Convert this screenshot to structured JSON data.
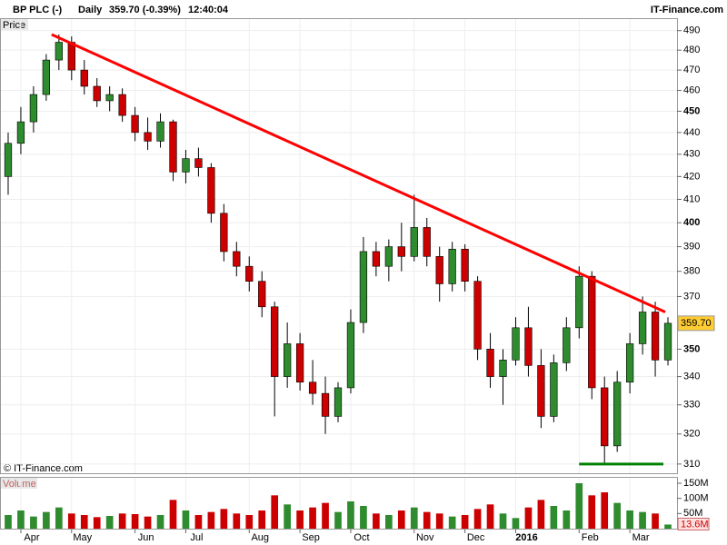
{
  "header": {
    "symbol": "BP PLC (-)",
    "period": "Daily",
    "quote": "359.70 (-0.39%)",
    "time": "12:40:04",
    "brand": "IT-Finance.com"
  },
  "chart_data": {
    "type": "candlestick",
    "price_label": "Price",
    "volume_label": "Volume",
    "copyright": "© IT-Finance.com",
    "categories": [
      null,
      "Apr",
      null,
      null,
      null,
      "May",
      null,
      null,
      null,
      null,
      "Jun",
      null,
      null,
      null,
      "Jul",
      null,
      null,
      null,
      null,
      "Aug",
      null,
      null,
      null,
      "Sep",
      null,
      null,
      null,
      "Oct",
      null,
      null,
      null,
      null,
      "Nov",
      null,
      null,
      null,
      "Dec",
      null,
      null,
      null,
      "2016",
      null,
      null,
      null,
      null,
      "Feb",
      null,
      null,
      null,
      "Mar",
      null,
      null,
      null
    ],
    "open": [
      420,
      435,
      445,
      458,
      475,
      484,
      470,
      462,
      455,
      458,
      448,
      440,
      436,
      445,
      422,
      428,
      424,
      404,
      388,
      382,
      376,
      366,
      340,
      352,
      338,
      334,
      326,
      336,
      360,
      388,
      382,
      390,
      386,
      398,
      386,
      375,
      389,
      376,
      350,
      340,
      346,
      358,
      344,
      326,
      345,
      358,
      378,
      336,
      316,
      338,
      352,
      364,
      346
    ],
    "high": [
      440,
      452,
      462,
      478,
      488,
      487,
      475,
      466,
      462,
      461,
      452,
      447,
      449,
      446,
      432,
      433,
      426,
      408,
      392,
      386,
      380,
      368,
      360,
      356,
      346,
      340,
      338,
      365,
      394,
      392,
      393,
      400,
      412,
      402,
      390,
      392,
      391,
      378,
      356,
      350,
      362,
      366,
      350,
      348,
      362,
      382,
      380,
      340,
      342,
      356,
      370,
      368,
      362
    ],
    "low": [
      412,
      430,
      440,
      455,
      470,
      465,
      458,
      452,
      450,
      445,
      436,
      432,
      433,
      418,
      417,
      420,
      400,
      384,
      378,
      372,
      362,
      326,
      336,
      335,
      330,
      320,
      324,
      334,
      356,
      378,
      376,
      380,
      384,
      382,
      368,
      372,
      372,
      346,
      336,
      330,
      344,
      340,
      322,
      324,
      342,
      354,
      332,
      310,
      314,
      334,
      348,
      340,
      344
    ],
    "close": [
      435,
      445,
      458,
      475,
      484,
      470,
      462,
      455,
      458,
      448,
      440,
      436,
      445,
      422,
      428,
      424,
      404,
      388,
      382,
      376,
      366,
      340,
      352,
      338,
      334,
      326,
      336,
      360,
      388,
      382,
      390,
      386,
      398,
      386,
      375,
      389,
      376,
      350,
      340,
      346,
      358,
      344,
      326,
      345,
      358,
      378,
      336,
      316,
      338,
      352,
      364,
      346,
      359.7
    ],
    "volume": [
      45000000,
      60000000,
      40000000,
      55000000,
      70000000,
      50000000,
      45000000,
      38000000,
      42000000,
      50000000,
      48000000,
      40000000,
      45000000,
      95000000,
      60000000,
      45000000,
      55000000,
      65000000,
      50000000,
      45000000,
      60000000,
      110000000,
      80000000,
      60000000,
      70000000,
      85000000,
      55000000,
      90000000,
      75000000,
      50000000,
      45000000,
      60000000,
      70000000,
      55000000,
      50000000,
      40000000,
      45000000,
      65000000,
      80000000,
      50000000,
      35000000,
      70000000,
      95000000,
      75000000,
      60000000,
      150000000,
      110000000,
      120000000,
      85000000,
      60000000,
      55000000,
      50000000,
      13600000
    ],
    "up_color": "#2e8b2e",
    "down_color": "#cc0000",
    "last_price": {
      "value": 359.7,
      "label": "359.70"
    },
    "last_volume": {
      "value": 13600000,
      "label": "13.6M"
    },
    "log_scale": true,
    "grid": true,
    "ylim": [
      307,
      496
    ],
    "yticks": [
      310,
      320,
      330,
      340,
      350,
      370,
      380,
      390,
      400,
      410,
      420,
      430,
      440,
      450,
      460,
      470,
      480,
      490
    ],
    "bold_ticks": [
      350,
      400,
      450
    ],
    "vlim": [
      0,
      168000000
    ],
    "vticks": [
      {
        "value": 50000000,
        "label": "50M"
      },
      {
        "value": 100000000,
        "label": "100M"
      },
      {
        "value": 150000000,
        "label": "150M"
      }
    ],
    "trendlines": [
      {
        "color": "#ff0000",
        "values": [
          488,
          364
        ]
      },
      {
        "color": "#008000",
        "values": [
          310,
          310
        ]
      }
    ]
  }
}
